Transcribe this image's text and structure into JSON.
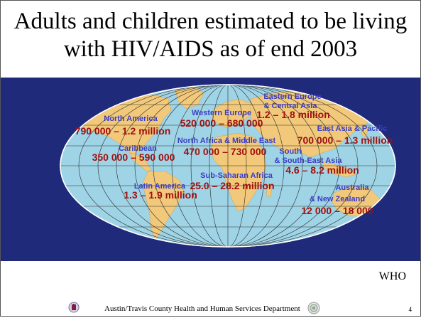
{
  "slide": {
    "title_line1": "Adults and children estimated to be living",
    "title_line2": "with HIV/AIDS as of end 2003",
    "source": "WHO",
    "footer": "Austin/Travis County Health and Human Services Department",
    "page_number": "4"
  },
  "colors": {
    "panel": "#1f2a7a",
    "ocean": "#9fd4e6",
    "land": "#f2c97a",
    "region_name": "#3a3dc4",
    "value": "#a01010"
  },
  "regions": [
    {
      "name": "North America",
      "value": "790 000 – 1.2 million"
    },
    {
      "name": "Caribbean",
      "value": "350 000 – 590 000"
    },
    {
      "name": "Latin America",
      "value": "1.3 – 1.9 million"
    },
    {
      "name": "Western Europe",
      "value": "520 000 – 680 000"
    },
    {
      "name": "North Africa & Middle East",
      "value": "470 000 – 730 000"
    },
    {
      "name": "Sub-Saharan Africa",
      "value": "25.0 – 28.2 million"
    },
    {
      "name_line1": "Eastern Europe",
      "name_line2": "& Central Asia",
      "value": "1.2 – 1.8 million"
    },
    {
      "name": "East Asia & Pacific",
      "value": "700 000 – 1.3 million"
    },
    {
      "name_line1": "South",
      "name_line2": "& South-East Asia",
      "value": "4.6 – 8.2 million"
    },
    {
      "name_line1": "Australia",
      "name_line2": "& New Zealand",
      "value": "12 000 – 18 000"
    }
  ]
}
